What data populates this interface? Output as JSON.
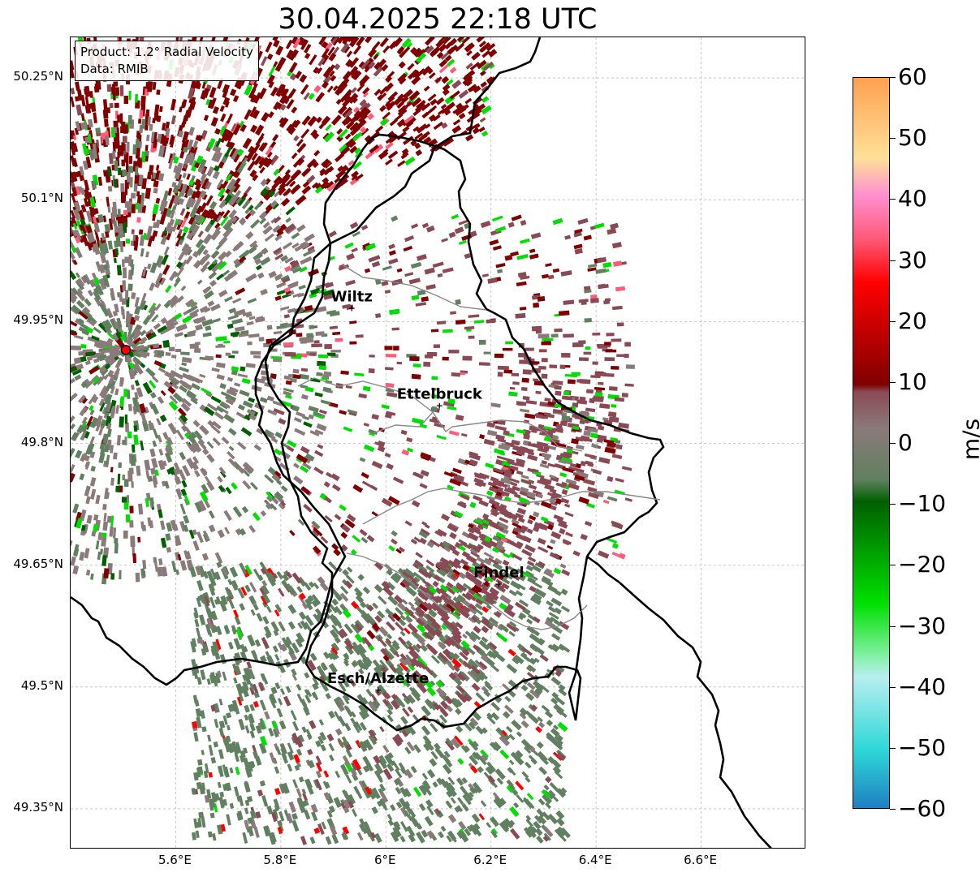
{
  "title": "30.04.2025 22:18 UTC",
  "info": {
    "product": "Product: 1.2° Radial Velocity",
    "data_source": "Data: RMIB"
  },
  "axes": {
    "lon_range": [
      5.4,
      6.8
    ],
    "lat_range": [
      49.3,
      50.3
    ],
    "x_ticks": [
      "5.6°E",
      "5.8°E",
      "6°E",
      "6.2°E",
      "6.4°E",
      "6.6°E"
    ],
    "x_tick_values": [
      5.6,
      5.8,
      6.0,
      6.2,
      6.4,
      6.6
    ],
    "y_ticks": [
      "50.25°N",
      "50.1°N",
      "49.95°N",
      "49.8°N",
      "49.65°N",
      "49.5°N",
      "49.35°N"
    ],
    "y_tick_values": [
      50.25,
      50.1,
      49.95,
      49.8,
      49.65,
      49.5,
      49.35
    ],
    "grid": true
  },
  "radar_site": {
    "lon": 5.505,
    "lat": 49.915
  },
  "cities": [
    {
      "name": "Wiltz",
      "lon": 5.935,
      "lat": 49.967
    },
    {
      "name": "Ettelbruck",
      "lon": 6.102,
      "lat": 49.847
    },
    {
      "name": "Findel",
      "lon": 6.215,
      "lat": 49.627
    },
    {
      "name": "Esch/Alzette",
      "lon": 5.985,
      "lat": 49.497
    }
  ],
  "colorbar": {
    "label": "m/s",
    "min": -60,
    "max": 60,
    "ticks": [
      "60",
      "50",
      "40",
      "30",
      "20",
      "10",
      "0",
      "−10",
      "−20",
      "−30",
      "−40",
      "−50",
      "−60"
    ],
    "tick_values": [
      60,
      50,
      40,
      30,
      20,
      10,
      0,
      -10,
      -20,
      -30,
      -40,
      -50,
      -60
    ],
    "colors": {
      "blue_low": "#1f7fc4",
      "cyan": "#2ed8d8",
      "light_cyan": "#b8eef0",
      "light_green": "#80f0a0",
      "green": "#00e000",
      "dark_green": "#006000",
      "gray_green": "#608060",
      "gray": "#8a7a7a",
      "mauve": "#8a4a55",
      "dark_red": "#800000",
      "red": "#ff0000",
      "pink": "#ff5a78",
      "light_pink": "#ff90d0",
      "pale_yellow": "#ffe098",
      "orange": "#ffa050"
    }
  }
}
